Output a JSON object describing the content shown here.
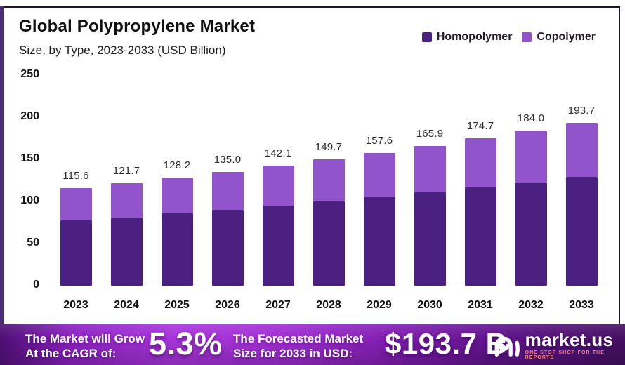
{
  "header": {
    "title": "Global Polypropylene Market",
    "subtitle": "Size, by Type, 2023-2033 (USD Billion)"
  },
  "legend": [
    {
      "label": "Homopolymer",
      "color": "#4a2181"
    },
    {
      "label": "Copolymer",
      "color": "#9153cb"
    }
  ],
  "chart_data": {
    "type": "bar",
    "stacked": true,
    "title": "Global Polypropylene Market Size, by Type, 2023-2033 (USD Billion)",
    "categories": [
      "2023",
      "2024",
      "2025",
      "2026",
      "2027",
      "2028",
      "2029",
      "2030",
      "2031",
      "2032",
      "2033"
    ],
    "series": [
      {
        "name": "Homopolymer",
        "color": "#4a2080",
        "values": [
          77.1,
          81.1,
          85.5,
          90.0,
          94.7,
          99.8,
          105.1,
          110.6,
          116.5,
          122.7,
          129.1
        ]
      },
      {
        "name": "Copolymer",
        "color": "#9254cb",
        "values": [
          38.5,
          40.6,
          42.7,
          45.0,
          47.4,
          49.9,
          52.5,
          55.3,
          58.2,
          61.3,
          64.6
        ]
      }
    ],
    "totals": [
      115.6,
      121.7,
      128.2,
      135.0,
      142.1,
      149.7,
      157.6,
      165.9,
      174.7,
      184.0,
      193.7
    ],
    "total_labels": [
      "115.6",
      "121.7",
      "128.2",
      "135.0",
      "142.1",
      "149.7",
      "157.6",
      "165.9",
      "174.7",
      "184.0",
      "193.7"
    ],
    "xlabel": "",
    "ylabel": "",
    "ylim": [
      0,
      250
    ],
    "yticks": [
      0,
      50,
      100,
      150,
      200,
      250
    ],
    "grid": false,
    "legend_position": "top-right"
  },
  "banner": {
    "cagr_lines": [
      "The Market will Grow",
      "At the CAGR of:"
    ],
    "cagr_value": "5.3%",
    "forecast_lines": [
      "The Forecasted Market",
      "Size for 2033 in USD:"
    ],
    "forecast_value": "$193.7 B",
    "brand": "market.us",
    "brand_tagline": "ONE STOP SHOP FOR THE REPORTS"
  }
}
